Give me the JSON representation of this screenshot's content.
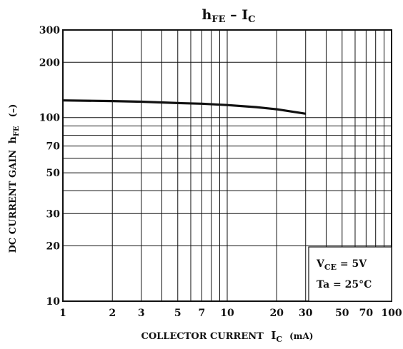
{
  "chart_data": {
    "type": "line",
    "title": "h_FE – I_C",
    "title_parts": {
      "main": "h",
      "sub_main": "FE",
      "sep": " – ",
      "second": "I",
      "sub_second": "C"
    },
    "xlabel": "COLLECTOR CURRENT I_C (mA)",
    "xlabel_parts": {
      "pre": "COLLECTOR CURRENT ",
      "sym": "I",
      "sym_sub": "C",
      "unit": "(mA)"
    },
    "ylabel": "DC CURRENT GAIN h_FE (–)",
    "ylabel_parts": {
      "pre": "DC CURRENT GAIN ",
      "sym": "h",
      "sym_sub": "FE",
      "unit": "(–)"
    },
    "x_scale": "log",
    "y_scale": "log",
    "xlim": [
      1,
      100
    ],
    "ylim": [
      10,
      300
    ],
    "x_ticks": [
      1,
      2,
      3,
      5,
      7,
      10,
      20,
      30,
      50,
      70,
      100
    ],
    "x_tick_labels": [
      "1",
      "2",
      "3",
      "5",
      "7",
      "10",
      "20",
      "30",
      "50",
      "70",
      "100"
    ],
    "y_ticks": [
      10,
      20,
      30,
      50,
      70,
      100,
      200,
      300
    ],
    "y_tick_labels": [
      "10",
      "20",
      "30",
      "50",
      "70",
      "100",
      "200",
      "300"
    ],
    "x_gridlines": [
      1,
      2,
      3,
      4,
      5,
      6,
      7,
      8,
      9,
      10,
      20,
      30,
      40,
      50,
      60,
      70,
      80,
      90,
      100
    ],
    "y_gridlines": [
      10,
      20,
      30,
      40,
      50,
      60,
      70,
      80,
      90,
      100,
      200,
      300
    ],
    "grid": true,
    "series": [
      {
        "x": [
          1,
          2,
          3,
          5,
          7,
          10,
          15,
          20,
          30
        ],
        "y": [
          124,
          123,
          122,
          120,
          119,
          117,
          114,
          111,
          105
        ]
      }
    ],
    "annotations": {
      "line1": {
        "sym": "V",
        "sub": "CE",
        "value": " = 5V"
      },
      "line2": {
        "text": "Ta = 25°C"
      }
    }
  }
}
